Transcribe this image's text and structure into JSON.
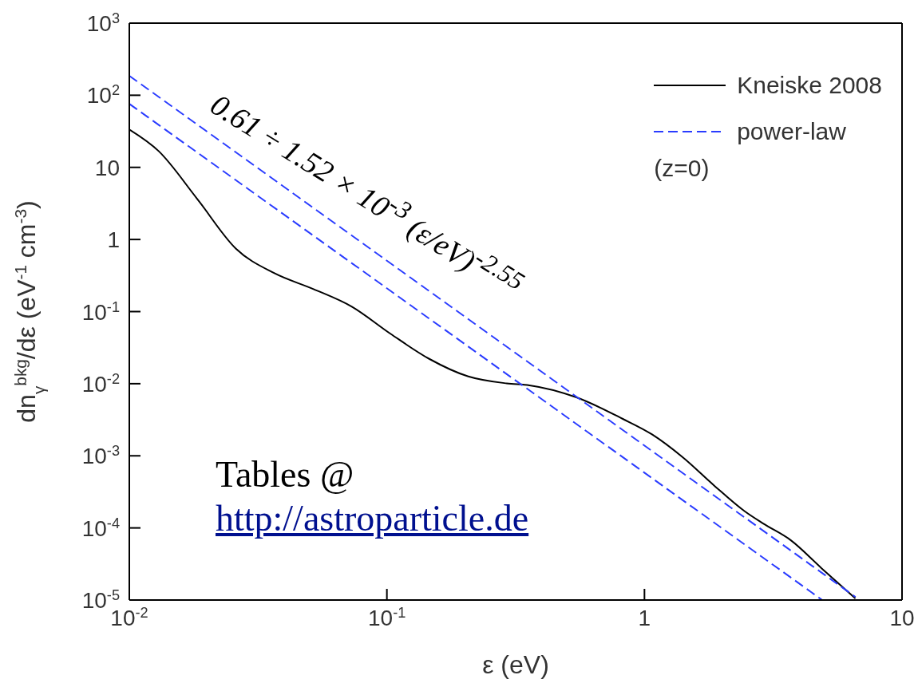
{
  "chart_data": {
    "type": "line",
    "xlabel": "ε (eV)",
    "ylabel": "dn$_{γ}$$^{bkg}$/dε (eV$^{-1}$ cm$^{-3}$)",
    "log": "xy",
    "xlim": [
      0.01,
      10
    ],
    "ylim": [
      1e-05,
      1000
    ],
    "xticks": [
      {
        "value": 0.01,
        "label": "10$^{-2}$"
      },
      {
        "value": 0.1,
        "label": "10$^{-1}$"
      },
      1,
      10
    ],
    "yticks": [
      {
        "value": 1e-05,
        "label": "10$^{-5}$"
      },
      {
        "value": 0.0001,
        "label": "10$^{-4}$"
      },
      {
        "value": 0.001,
        "label": "10$^{-3}$"
      },
      {
        "value": 0.01,
        "label": "10$^{-2}$"
      },
      {
        "value": 0.1,
        "label": "10$^{-1}$"
      },
      1,
      10,
      {
        "value": 100,
        "label": "10$^{2}$"
      },
      {
        "value": 1000,
        "label": "10$^{3}$"
      }
    ],
    "legend": "top right",
    "grid": false,
    "series": [
      {
        "name": "Kneiske 2008",
        "color": "#000000",
        "line_style": "solid",
        "x": [
          0.01,
          0.013,
          0.0183,
          0.0259,
          0.0366,
          0.0519,
          0.0731,
          0.1035,
          0.146,
          0.207,
          0.292,
          0.358,
          0.542,
          0.824,
          1.07,
          1.41,
          1.86,
          2.45,
          2.89,
          3.71,
          4.87,
          6.59
        ],
        "values": [
          33.5,
          16.8,
          3.7,
          0.75,
          0.34,
          0.205,
          0.117,
          0.049,
          0.0221,
          0.0126,
          0.0101,
          0.0095,
          0.0065,
          0.00325,
          0.00198,
          0.00095,
          0.00039,
          0.00017,
          0.000115,
          6.7e-05,
          2.76e-05,
          1.05e-05
        ]
      },
      {
        "name": "power-law",
        "color": "#2a3cff",
        "line_style": "dashed",
        "x": [
          0.01,
          4.9
        ],
        "values": [
          76,
          1e-05
        ]
      },
      {
        "color": "#2a3cff",
        "line_style": "dashed",
        "x": [
          0.01,
          6.6
        ],
        "values": [
          186,
          1.1e-05
        ]
      }
    ],
    "annotations": [
      "0.61 ÷ 1.52 × 10$^{-3}$ (ε/eV)$^{-2.55}$",
      "Tables @",
      "http://astroparticle.de",
      "(z=0)"
    ]
  }
}
